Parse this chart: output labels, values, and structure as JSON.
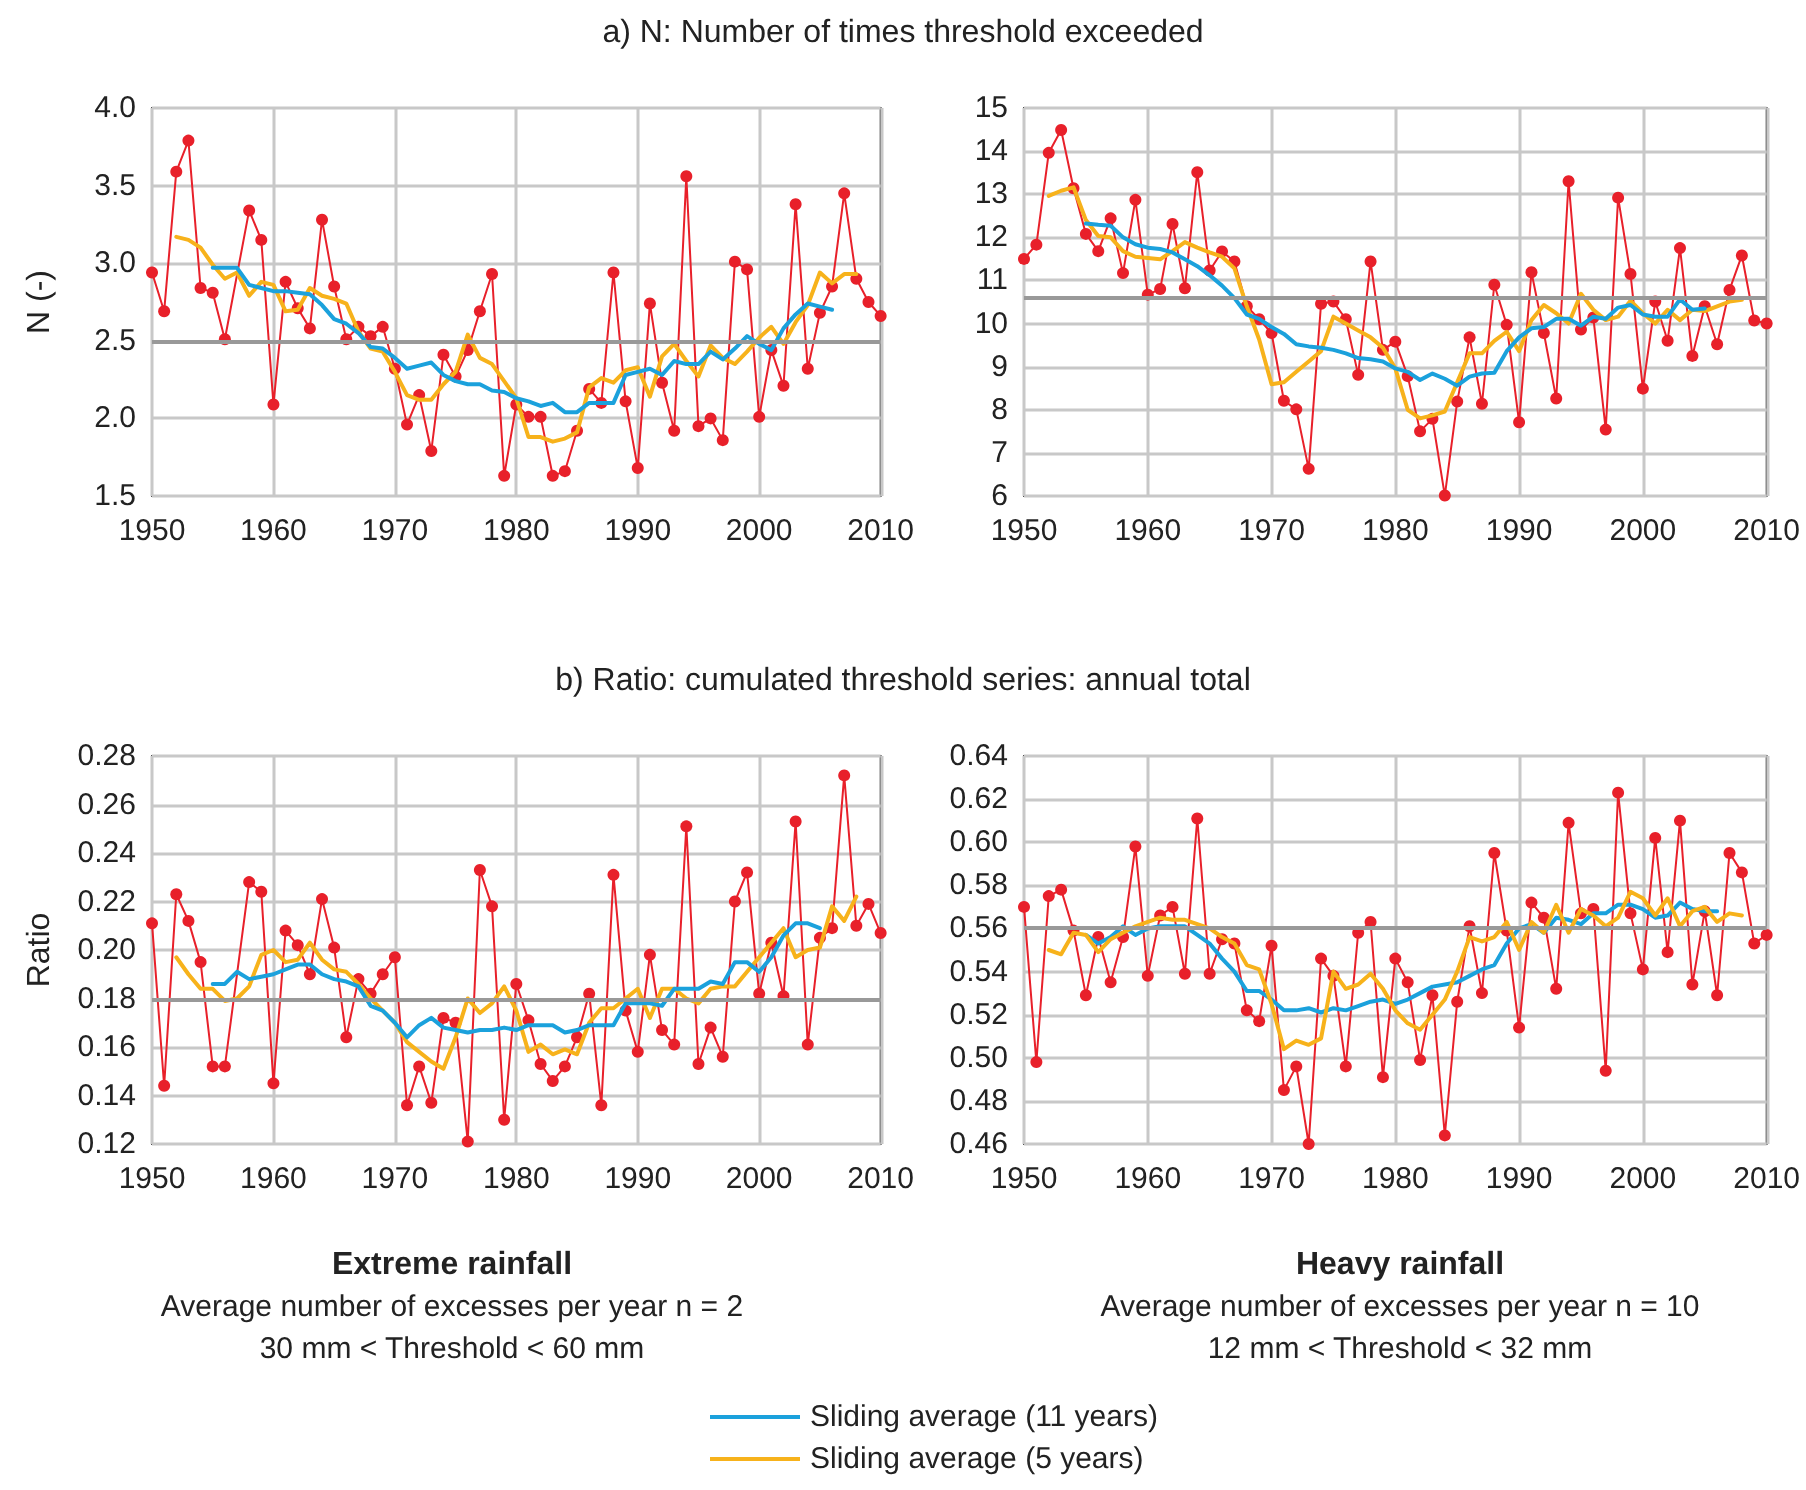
{
  "chart_data": [
    {
      "type": "line",
      "title": "a) N: Number of times threshold exceeded",
      "ylabel": "N (-)",
      "xlim": [
        1950,
        2010
      ],
      "xticks": [
        1950,
        1960,
        1970,
        1980,
        1990,
        2000,
        2010
      ],
      "ylim": [
        1.5,
        4
      ],
      "yticks": [
        1.5,
        {
          "value": 2,
          "label": "2.0"
        },
        2.5,
        {
          "value": 3,
          "label": "3.0"
        },
        3.5,
        {
          "value": 4,
          "label": "4.0"
        }
      ],
      "grid": true,
      "ref_lines": [
        {
          "axis": "y",
          "value": 2.5,
          "color": "#999999"
        }
      ],
      "series": [
        {
          "color": "#e8202a",
          "marker": "circle",
          "x": [
            1950,
            1951,
            1952,
            1953,
            1954,
            1955,
            1956,
            1958,
            1959,
            1960,
            1961,
            1962,
            1963,
            1964,
            1965,
            1966,
            1967,
            1968,
            1969,
            1970,
            1971,
            1972,
            1973,
            1974,
            1975,
            1976,
            1977,
            1978,
            1979,
            1980,
            1981,
            1982,
            1983,
            1984,
            1985,
            1986,
            1987,
            1988,
            1989,
            1990,
            1991,
            1992,
            1993,
            1994,
            1995,
            1996,
            1997,
            1998,
            1999,
            2000,
            2001,
            2002,
            2003,
            2004,
            2005,
            2006,
            2007,
            2008,
            2009,
            2010
          ],
          "values": [
            2.94,
            2.69,
            3.59,
            3.79,
            2.84,
            2.81,
            2.51,
            3.34,
            3.15,
            2.09,
            2.88,
            2.71,
            2.58,
            3.28,
            2.85,
            2.51,
            2.59,
            2.53,
            2.59,
            2.32,
            1.96,
            2.15,
            1.79,
            2.41,
            2.27,
            2.44,
            2.69,
            2.93,
            1.63,
            2.09,
            2.01,
            2.01,
            1.63,
            1.66,
            1.92,
            2.19,
            2.1,
            2.94,
            2.11,
            1.68,
            2.74,
            2.23,
            1.92,
            3.56,
            1.95,
            2.0,
            1.86,
            3.01,
            2.96,
            2.01,
            2.44,
            2.21,
            3.38,
            2.32,
            2.68,
            2.85,
            3.45,
            2.9,
            2.75,
            2.66
          ]
        },
        {
          "color": "#f7b21b",
          "marker": "none",
          "x": [
            1952,
            1953,
            1954,
            1955,
            1956,
            1957,
            1958,
            1959,
            1960,
            1961,
            1962,
            1963,
            1964,
            1965,
            1966,
            1967,
            1968,
            1969,
            1970,
            1971,
            1972,
            1973,
            1974,
            1975,
            1976,
            1977,
            1978,
            1979,
            1980,
            1981,
            1982,
            1983,
            1984,
            1985,
            1986,
            1987,
            1988,
            1989,
            1990,
            1991,
            1992,
            1993,
            1994,
            1995,
            1996,
            1997,
            1998,
            1999,
            2000,
            2001,
            2002,
            2003,
            2004,
            2005,
            2006,
            2007,
            2008
          ],
          "values": [
            3.17,
            3.15,
            3.1,
            2.99,
            2.9,
            2.94,
            2.79,
            2.88,
            2.86,
            2.69,
            2.7,
            2.84,
            2.79,
            2.77,
            2.74,
            2.56,
            2.45,
            2.43,
            2.3,
            2.15,
            2.12,
            2.12,
            2.22,
            2.3,
            2.54,
            2.39,
            2.35,
            2.24,
            2.13,
            1.88,
            1.88,
            1.85,
            1.87,
            1.91,
            2.2,
            2.26,
            2.23,
            2.31,
            2.33,
            2.14,
            2.4,
            2.48,
            2.37,
            2.27,
            2.47,
            2.39,
            2.35,
            2.43,
            2.52,
            2.59,
            2.48,
            2.62,
            2.73,
            2.94,
            2.87,
            2.93,
            2.93
          ]
        },
        {
          "color": "#1ba1dc",
          "marker": "none",
          "x": [
            1955,
            1956,
            1957,
            1958,
            1959,
            1960,
            1961,
            1962,
            1963,
            1964,
            1965,
            1966,
            1967,
            1968,
            1969,
            1970,
            1971,
            1972,
            1973,
            1974,
            1975,
            1976,
            1977,
            1978,
            1979,
            1980,
            1981,
            1982,
            1983,
            1984,
            1985,
            1986,
            1987,
            1988,
            1989,
            1990,
            1991,
            1992,
            1993,
            1994,
            1995,
            1996,
            1997,
            1998,
            1999,
            2000,
            2001,
            2002,
            2003,
            2004,
            2005,
            2006
          ],
          "values": [
            2.97,
            2.97,
            2.97,
            2.86,
            2.84,
            2.82,
            2.82,
            2.81,
            2.8,
            2.73,
            2.64,
            2.61,
            2.55,
            2.46,
            2.45,
            2.39,
            2.32,
            2.34,
            2.36,
            2.28,
            2.24,
            2.22,
            2.22,
            2.18,
            2.17,
            2.13,
            2.11,
            2.08,
            2.1,
            2.04,
            2.04,
            2.1,
            2.1,
            2.1,
            2.28,
            2.3,
            2.32,
            2.28,
            2.37,
            2.35,
            2.35,
            2.43,
            2.38,
            2.45,
            2.53,
            2.48,
            2.44,
            2.58,
            2.67,
            2.74,
            2.72,
            2.7
          ]
        }
      ]
    },
    {
      "type": "line",
      "xlim": [
        1950,
        2010
      ],
      "xticks": [
        1950,
        1960,
        1970,
        1980,
        1990,
        2000,
        2010
      ],
      "ylim": [
        6,
        15
      ],
      "yticks": [
        6,
        7,
        8,
        9,
        10,
        11,
        12,
        13,
        14,
        15
      ],
      "grid": true,
      "ref_lines": [
        {
          "axis": "y",
          "value": 10.6,
          "color": "#999999"
        }
      ],
      "series": [
        {
          "color": "#e8202a",
          "marker": "circle",
          "x": [
            1950,
            1951,
            1952,
            1953,
            1954,
            1955,
            1956,
            1957,
            1958,
            1959,
            1960,
            1961,
            1962,
            1963,
            1964,
            1965,
            1966,
            1967,
            1968,
            1969,
            1970,
            1971,
            1972,
            1973,
            1974,
            1975,
            1976,
            1977,
            1978,
            1979,
            1980,
            1981,
            1982,
            1983,
            1984,
            1985,
            1986,
            1987,
            1988,
            1989,
            1990,
            1991,
            1992,
            1993,
            1994,
            1995,
            1996,
            1997,
            1998,
            1999,
            2000,
            2001,
            2002,
            2003,
            2004,
            2005,
            2006,
            2007,
            2008,
            2009,
            2010
          ],
          "values": [
            11.5,
            11.83,
            13.96,
            14.49,
            13.14,
            12.08,
            11.68,
            12.44,
            11.17,
            12.87,
            10.67,
            10.8,
            12.31,
            10.82,
            13.51,
            11.23,
            11.67,
            11.44,
            10.4,
            10.1,
            9.78,
            8.21,
            8.01,
            6.63,
            10.46,
            10.51,
            10.1,
            8.81,
            11.44,
            9.39,
            9.58,
            8.78,
            7.5,
            7.79,
            6.01,
            8.19,
            9.68,
            8.14,
            10.9,
            9.97,
            7.71,
            11.19,
            9.78,
            8.26,
            13.3,
            9.86,
            10.14,
            7.54,
            12.92,
            11.15,
            8.49,
            10.51,
            9.6,
            11.75,
            9.25,
            10.4,
            9.52,
            10.78,
            11.58,
            10.07,
            10.0
          ]
        },
        {
          "color": "#f7b21b",
          "marker": "none",
          "x": [
            1952,
            1953,
            1954,
            1955,
            1956,
            1957,
            1958,
            1959,
            1960,
            1961,
            1962,
            1963,
            1964,
            1965,
            1966,
            1967,
            1968,
            1969,
            1970,
            1971,
            1972,
            1973,
            1974,
            1975,
            1976,
            1977,
            1978,
            1979,
            1980,
            1981,
            1982,
            1983,
            1984,
            1985,
            1986,
            1987,
            1988,
            1989,
            1990,
            1991,
            1992,
            1993,
            1994,
            1995,
            1996,
            1997,
            1998,
            1999,
            2000,
            2001,
            2002,
            2003,
            2004,
            2005,
            2006,
            2007,
            2008
          ],
          "values": [
            12.96,
            13.08,
            13.16,
            12.4,
            12.03,
            12.0,
            11.68,
            11.55,
            11.52,
            11.49,
            11.68,
            11.89,
            11.76,
            11.65,
            11.55,
            11.28,
            10.4,
            9.63,
            8.59,
            8.64,
            8.88,
            9.12,
            9.36,
            10.16,
            10.0,
            9.84,
            9.68,
            9.44,
            8.96,
            8.0,
            7.8,
            7.87,
            7.96,
            8.64,
            9.31,
            9.31,
            9.6,
            9.81,
            9.36,
            10.08,
            10.43,
            10.24,
            10.0,
            10.69,
            10.32,
            10.08,
            10.16,
            10.53,
            10.24,
            10.0,
            10.32,
            10.08,
            10.32,
            10.29,
            10.4,
            10.51,
            10.55
          ]
        },
        {
          "color": "#1ba1dc",
          "marker": "none",
          "x": [
            1955,
            1956,
            1957,
            1958,
            1959,
            1960,
            1961,
            1962,
            1963,
            1964,
            1965,
            1966,
            1967,
            1968,
            1969,
            1970,
            1971,
            1972,
            1973,
            1974,
            1975,
            1976,
            1977,
            1978,
            1979,
            1980,
            1981,
            1982,
            1983,
            1984,
            1985,
            1986,
            1987,
            1988,
            1989,
            1990,
            1991,
            1992,
            1993,
            1994,
            1995,
            1996,
            1997,
            1998,
            1999,
            2000,
            2001,
            2002,
            2003,
            2004,
            2005
          ],
          "values": [
            12.32,
            12.29,
            12.27,
            12.0,
            11.84,
            11.76,
            11.73,
            11.65,
            11.49,
            11.33,
            11.12,
            10.88,
            10.59,
            10.21,
            10.11,
            9.92,
            9.76,
            9.52,
            9.47,
            9.44,
            9.39,
            9.31,
            9.2,
            9.17,
            9.12,
            8.96,
            8.88,
            8.69,
            8.84,
            8.72,
            8.56,
            8.77,
            8.84,
            8.86,
            9.36,
            9.68,
            9.89,
            9.92,
            10.11,
            10.11,
            9.95,
            10.16,
            10.11,
            10.37,
            10.43,
            10.21,
            10.16,
            10.16,
            10.56,
            10.32,
            10.35
          ]
        }
      ]
    },
    {
      "type": "line",
      "title": "b) Ratio: cumulated threshold series: annual total",
      "ylabel": "Ratio",
      "xlim": [
        1950,
        2010
      ],
      "xticks": [
        1950,
        1960,
        1970,
        1980,
        1990,
        2000,
        2010
      ],
      "ylim": [
        0.12,
        0.28
      ],
      "yticks": [
        0.12,
        0.14,
        0.16,
        0.18,
        {
          "value": 0.2,
          "label": "0.20"
        },
        0.22,
        0.24,
        0.26,
        0.28
      ],
      "grid": true,
      "ref_lines": [
        {
          "axis": "y",
          "value": 0.18,
          "color": "#999999"
        }
      ],
      "annotations": [
        "Extreme rainfall",
        "Average number of excesses per year n = 2",
        "30 mm < Threshold < 60 mm"
      ],
      "series": [
        {
          "color": "#e8202a",
          "marker": "circle",
          "x": [
            1950,
            1951,
            1952,
            1953,
            1954,
            1955,
            1956,
            1958,
            1959,
            1960,
            1961,
            1962,
            1963,
            1964,
            1965,
            1966,
            1967,
            1968,
            1969,
            1970,
            1971,
            1972,
            1973,
            1974,
            1975,
            1976,
            1977,
            1978,
            1979,
            1980,
            1981,
            1982,
            1983,
            1984,
            1985,
            1986,
            1987,
            1988,
            1989,
            1990,
            1991,
            1992,
            1993,
            1994,
            1995,
            1996,
            1997,
            1998,
            1999,
            2000,
            2001,
            2002,
            2003,
            2004,
            2005,
            2006,
            2007,
            2008,
            2009,
            2010
          ],
          "values": [
            0.211,
            0.144,
            0.223,
            0.212,
            0.195,
            0.152,
            0.152,
            0.228,
            0.224,
            0.145,
            0.208,
            0.202,
            0.19,
            0.221,
            0.201,
            0.164,
            0.188,
            0.182,
            0.19,
            0.197,
            0.136,
            0.152,
            0.137,
            0.172,
            0.17,
            0.121,
            0.233,
            0.218,
            0.13,
            0.186,
            0.171,
            0.153,
            0.146,
            0.152,
            0.164,
            0.182,
            0.136,
            0.231,
            0.175,
            0.158,
            0.198,
            0.167,
            0.161,
            0.251,
            0.153,
            0.168,
            0.156,
            0.22,
            0.232,
            0.182,
            0.203,
            0.181,
            0.253,
            0.161,
            0.205,
            0.209,
            0.272,
            0.21,
            0.219,
            0.207
          ]
        },
        {
          "color": "#f7b21b",
          "marker": "none",
          "x": [
            1952,
            1953,
            1954,
            1955,
            1956,
            1957,
            1958,
            1959,
            1960,
            1961,
            1962,
            1963,
            1964,
            1965,
            1966,
            1967,
            1968,
            1969,
            1970,
            1971,
            1972,
            1973,
            1974,
            1975,
            1976,
            1977,
            1978,
            1979,
            1980,
            1981,
            1982,
            1983,
            1984,
            1985,
            1986,
            1987,
            1988,
            1989,
            1990,
            1991,
            1992,
            1993,
            1994,
            1995,
            1996,
            1997,
            1998,
            1999,
            2000,
            2001,
            2002,
            2003,
            2004,
            2005,
            2006,
            2007,
            2008
          ],
          "values": [
            0.197,
            0.19,
            0.184,
            0.184,
            0.179,
            0.18,
            0.185,
            0.198,
            0.2,
            0.195,
            0.196,
            0.203,
            0.196,
            0.192,
            0.191,
            0.186,
            0.18,
            0.175,
            0.17,
            0.162,
            0.158,
            0.154,
            0.151,
            0.164,
            0.18,
            0.174,
            0.178,
            0.185,
            0.175,
            0.158,
            0.161,
            0.157,
            0.159,
            0.157,
            0.17,
            0.176,
            0.176,
            0.18,
            0.184,
            0.172,
            0.184,
            0.184,
            0.18,
            0.178,
            0.184,
            0.185,
            0.185,
            0.191,
            0.197,
            0.203,
            0.209,
            0.197,
            0.2,
            0.201,
            0.218,
            0.212,
            0.222
          ]
        },
        {
          "color": "#1ba1dc",
          "marker": "none",
          "x": [
            1955,
            1956,
            1957,
            1958,
            1959,
            1960,
            1961,
            1962,
            1963,
            1964,
            1965,
            1966,
            1967,
            1968,
            1969,
            1970,
            1971,
            1972,
            1973,
            1974,
            1975,
            1976,
            1977,
            1978,
            1979,
            1980,
            1981,
            1982,
            1983,
            1984,
            1985,
            1986,
            1987,
            1988,
            1989,
            1990,
            1991,
            1992,
            1993,
            1994,
            1995,
            1996,
            1997,
            1998,
            1999,
            2000,
            2001,
            2002,
            2003,
            2004,
            2005
          ],
          "values": [
            0.186,
            0.186,
            0.191,
            0.188,
            0.189,
            0.19,
            0.192,
            0.194,
            0.194,
            0.19,
            0.188,
            0.187,
            0.185,
            0.177,
            0.175,
            0.17,
            0.164,
            0.169,
            0.172,
            0.168,
            0.167,
            0.166,
            0.167,
            0.167,
            0.168,
            0.167,
            0.169,
            0.169,
            0.169,
            0.166,
            0.167,
            0.169,
            0.169,
            0.169,
            0.178,
            0.178,
            0.178,
            0.177,
            0.184,
            0.184,
            0.184,
            0.187,
            0.186,
            0.195,
            0.195,
            0.191,
            0.197,
            0.206,
            0.211,
            0.211,
            0.209
          ]
        }
      ]
    },
    {
      "type": "line",
      "xlim": [
        1950,
        2010
      ],
      "xticks": [
        1950,
        1960,
        1970,
        1980,
        1990,
        2000,
        2010
      ],
      "ylim": [
        0.46,
        0.64
      ],
      "yticks": [
        0.46,
        0.48,
        {
          "value": 0.5,
          "label": "0.50"
        },
        0.52,
        0.54,
        0.56,
        0.58,
        {
          "value": 0.6,
          "label": "0.60"
        },
        0.62,
        0.64
      ],
      "grid": true,
      "ref_lines": [
        {
          "axis": "y",
          "value": 0.56,
          "color": "#999999"
        }
      ],
      "legend": "bottom",
      "annotations": [
        "Heavy rainfall",
        "Average number of excesses per year n = 10",
        "12 mm < Threshold < 32 mm"
      ],
      "series": [
        {
          "color": "#e8202a",
          "marker": "circle",
          "x": [
            1950,
            1951,
            1952,
            1953,
            1954,
            1955,
            1956,
            1957,
            1958,
            1959,
            1960,
            1961,
            1962,
            1963,
            1964,
            1965,
            1966,
            1967,
            1968,
            1969,
            1970,
            1971,
            1972,
            1973,
            1974,
            1975,
            1976,
            1977,
            1978,
            1979,
            1980,
            1981,
            1982,
            1983,
            1984,
            1985,
            1986,
            1987,
            1988,
            1989,
            1990,
            1991,
            1992,
            1993,
            1994,
            1995,
            1996,
            1997,
            1998,
            1999,
            2000,
            2001,
            2002,
            2003,
            2004,
            2005,
            2006,
            2007,
            2008,
            2009,
            2010
          ],
          "values": [
            0.57,
            0.498,
            0.575,
            0.578,
            0.559,
            0.529,
            0.556,
            0.535,
            0.556,
            0.598,
            0.538,
            0.566,
            0.57,
            0.539,
            0.611,
            0.539,
            0.555,
            0.553,
            0.522,
            0.517,
            0.552,
            0.485,
            0.496,
            0.46,
            0.546,
            0.538,
            0.496,
            0.558,
            0.563,
            0.491,
            0.546,
            0.535,
            0.499,
            0.529,
            0.464,
            0.526,
            0.561,
            0.53,
            0.595,
            0.559,
            0.514,
            0.572,
            0.565,
            0.532,
            0.609,
            0.567,
            0.569,
            0.494,
            0.623,
            0.567,
            0.541,
            0.602,
            0.549,
            0.61,
            0.534,
            0.568,
            0.529,
            0.595,
            0.586,
            0.553,
            0.557
          ]
        },
        {
          "name": "Sliding average (11 years)",
          "color": "#1ba1dc",
          "marker": "none",
          "x": [
            1955,
            1956,
            1957,
            1958,
            1959,
            1960,
            1961,
            1962,
            1963,
            1964,
            1965,
            1966,
            1967,
            1968,
            1969,
            1970,
            1971,
            1972,
            1973,
            1974,
            1975,
            1976,
            1977,
            1978,
            1979,
            1980,
            1981,
            1982,
            1983,
            1984,
            1985,
            1986,
            1987,
            1988,
            1989,
            1990,
            1991,
            1992,
            1993,
            1994,
            1995,
            1996,
            1997,
            1998,
            1999,
            2000,
            2001,
            2002,
            2003,
            2004,
            2005,
            2006
          ],
          "values": [
            0.557,
            0.553,
            0.556,
            0.561,
            0.557,
            0.56,
            0.561,
            0.561,
            0.561,
            0.557,
            0.553,
            0.546,
            0.54,
            0.531,
            0.531,
            0.527,
            0.522,
            0.522,
            0.523,
            0.521,
            0.523,
            0.522,
            0.524,
            0.526,
            0.527,
            0.525,
            0.527,
            0.53,
            0.533,
            0.534,
            0.535,
            0.538,
            0.541,
            0.543,
            0.553,
            0.56,
            0.562,
            0.558,
            0.565,
            0.564,
            0.562,
            0.567,
            0.567,
            0.571,
            0.571,
            0.569,
            0.565,
            0.566,
            0.572,
            0.569,
            0.568,
            0.568
          ]
        },
        {
          "name": "Sliding average (5 years)",
          "color": "#f7b21b",
          "marker": "none",
          "x": [
            1952,
            1953,
            1954,
            1955,
            1956,
            1957,
            1958,
            1959,
            1960,
            1961,
            1962,
            1963,
            1964,
            1965,
            1966,
            1967,
            1968,
            1969,
            1970,
            1971,
            1972,
            1973,
            1974,
            1975,
            1976,
            1977,
            1978,
            1979,
            1980,
            1981,
            1982,
            1983,
            1984,
            1985,
            1986,
            1987,
            1988,
            1989,
            1990,
            1991,
            1992,
            1993,
            1994,
            1995,
            1996,
            1997,
            1998,
            1999,
            2000,
            2001,
            2002,
            2003,
            2004,
            2005,
            2006,
            2007,
            2008
          ],
          "values": [
            0.55,
            0.548,
            0.558,
            0.557,
            0.549,
            0.555,
            0.558,
            0.561,
            0.563,
            0.565,
            0.564,
            0.564,
            0.562,
            0.56,
            0.556,
            0.553,
            0.543,
            0.541,
            0.525,
            0.504,
            0.508,
            0.506,
            0.509,
            0.54,
            0.532,
            0.534,
            0.539,
            0.532,
            0.522,
            0.516,
            0.513,
            0.52,
            0.527,
            0.54,
            0.556,
            0.554,
            0.556,
            0.563,
            0.55,
            0.563,
            0.558,
            0.571,
            0.558,
            0.569,
            0.566,
            0.561,
            0.565,
            0.577,
            0.574,
            0.566,
            0.574,
            0.561,
            0.568,
            0.57,
            0.563,
            0.567,
            0.566
          ]
        }
      ]
    }
  ]
}
